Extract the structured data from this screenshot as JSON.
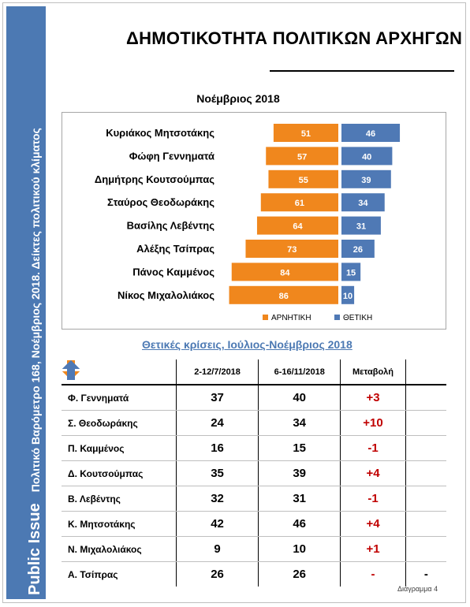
{
  "sidebar": {
    "brand": "Public Issue",
    "description": "Πολιτικό Βαρόμετρο 168, Νοέμβριος 2018. Δείκτες πολιτικού κλίματος"
  },
  "title": "ΔΗΜΟΤΙΚΟΤΗΤΑ ΠΟΛΙΤΙΚΩΝ ΑΡΧΗΓΩΝ",
  "chart_data": {
    "type": "bar",
    "orientation": "diverging-horizontal",
    "title": "Νοέμβριος 2018",
    "categories": [
      "Κυριάκος Μητσοτάκης",
      "Φώφη Γεννηματά",
      "Δημήτρης Κουτσούμπας",
      "Σταύρος Θεοδωράκης",
      "Βασίλης Λεβέντης",
      "Αλέξης Τσίπρας",
      "Πάνος Καμμένος",
      "Νίκος Μιχαλολιάκος"
    ],
    "series": [
      {
        "name": "ΑΡΝΗΤΙΚΗ",
        "color": "#f0871d",
        "values": [
          51,
          57,
          55,
          61,
          64,
          73,
          84,
          86
        ]
      },
      {
        "name": "ΘΕΤΙΚΗ",
        "color": "#4f79b5",
        "values": [
          46,
          40,
          39,
          34,
          31,
          26,
          15,
          10
        ]
      }
    ],
    "legend": "bottom-center",
    "grid": false
  },
  "table": {
    "title": "Θετικές κρίσεις, Ιούλιος-Νοέμβριος 2018",
    "columns": [
      "2-12/7/2018",
      "6-16/11/2018",
      "Μεταβολή"
    ],
    "rows": [
      {
        "name": "Φ. Γεννηματά",
        "v1": "37",
        "v2": "40",
        "change": "+3",
        "arrow": "up"
      },
      {
        "name": "Σ. Θεοδωράκης",
        "v1": "24",
        "v2": "34",
        "change": "+10",
        "arrow": "up"
      },
      {
        "name": "Π. Καμμένος",
        "v1": "16",
        "v2": "15",
        "change": "-1",
        "arrow": "down"
      },
      {
        "name": "Δ. Κουτσούμπας",
        "v1": "35",
        "v2": "39",
        "change": "+4",
        "arrow": "up"
      },
      {
        "name": "Β. Λεβέντης",
        "v1": "32",
        "v2": "31",
        "change": "-1",
        "arrow": "down"
      },
      {
        "name": "Κ. Μητσοτάκης",
        "v1": "42",
        "v2": "46",
        "change": "+4",
        "arrow": "up"
      },
      {
        "name": "Ν. Μιχαλολιάκος",
        "v1": "9",
        "v2": "10",
        "change": "+1",
        "arrow": "up"
      },
      {
        "name": "Α. Τσίπρας",
        "v1": "26",
        "v2": "26",
        "change": "-",
        "arrow": "-"
      }
    ],
    "colors": {
      "up": "#4f79b5",
      "down": "#f0871d",
      "change": "#c00000"
    }
  },
  "footer": "Διάγραμμα 4"
}
